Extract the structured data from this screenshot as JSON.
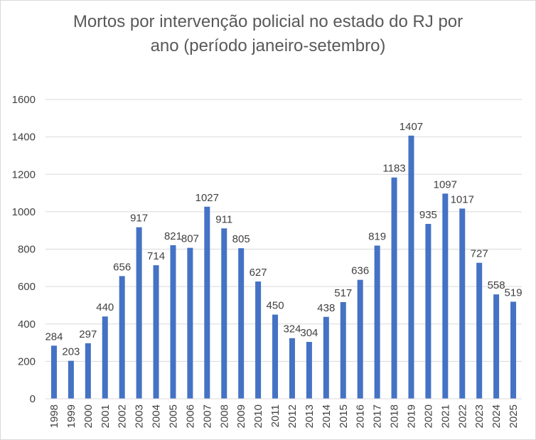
{
  "chart_data": {
    "type": "bar",
    "title_line1": "Mortos por intervenção policial no estado do RJ por",
    "title_line2": "ano (período janeiro-setembro)",
    "xlabel": "",
    "ylabel": "",
    "ylim": [
      0,
      1600
    ],
    "yticks": [
      "0",
      "200",
      "400",
      "600",
      "800",
      "1000",
      "1200",
      "1400",
      "1600"
    ],
    "grid": true,
    "bar_color": "#4472c4",
    "categories": [
      "1998",
      "1999",
      "2000",
      "2001",
      "2002",
      "2003",
      "2004",
      "2005",
      "2006",
      "2007",
      "2008",
      "2009",
      "2010",
      "2011",
      "2012",
      "2013",
      "2014",
      "2015",
      "2016",
      "2017",
      "2018",
      "2019",
      "2020",
      "2021",
      "2022",
      "2023",
      "2024",
      "2025"
    ],
    "values": [
      284,
      203,
      297,
      440,
      656,
      917,
      714,
      821,
      807,
      1027,
      911,
      805,
      627,
      450,
      324,
      304,
      438,
      517,
      636,
      819,
      1183,
      1407,
      935,
      1097,
      1017,
      727,
      558,
      519
    ]
  }
}
